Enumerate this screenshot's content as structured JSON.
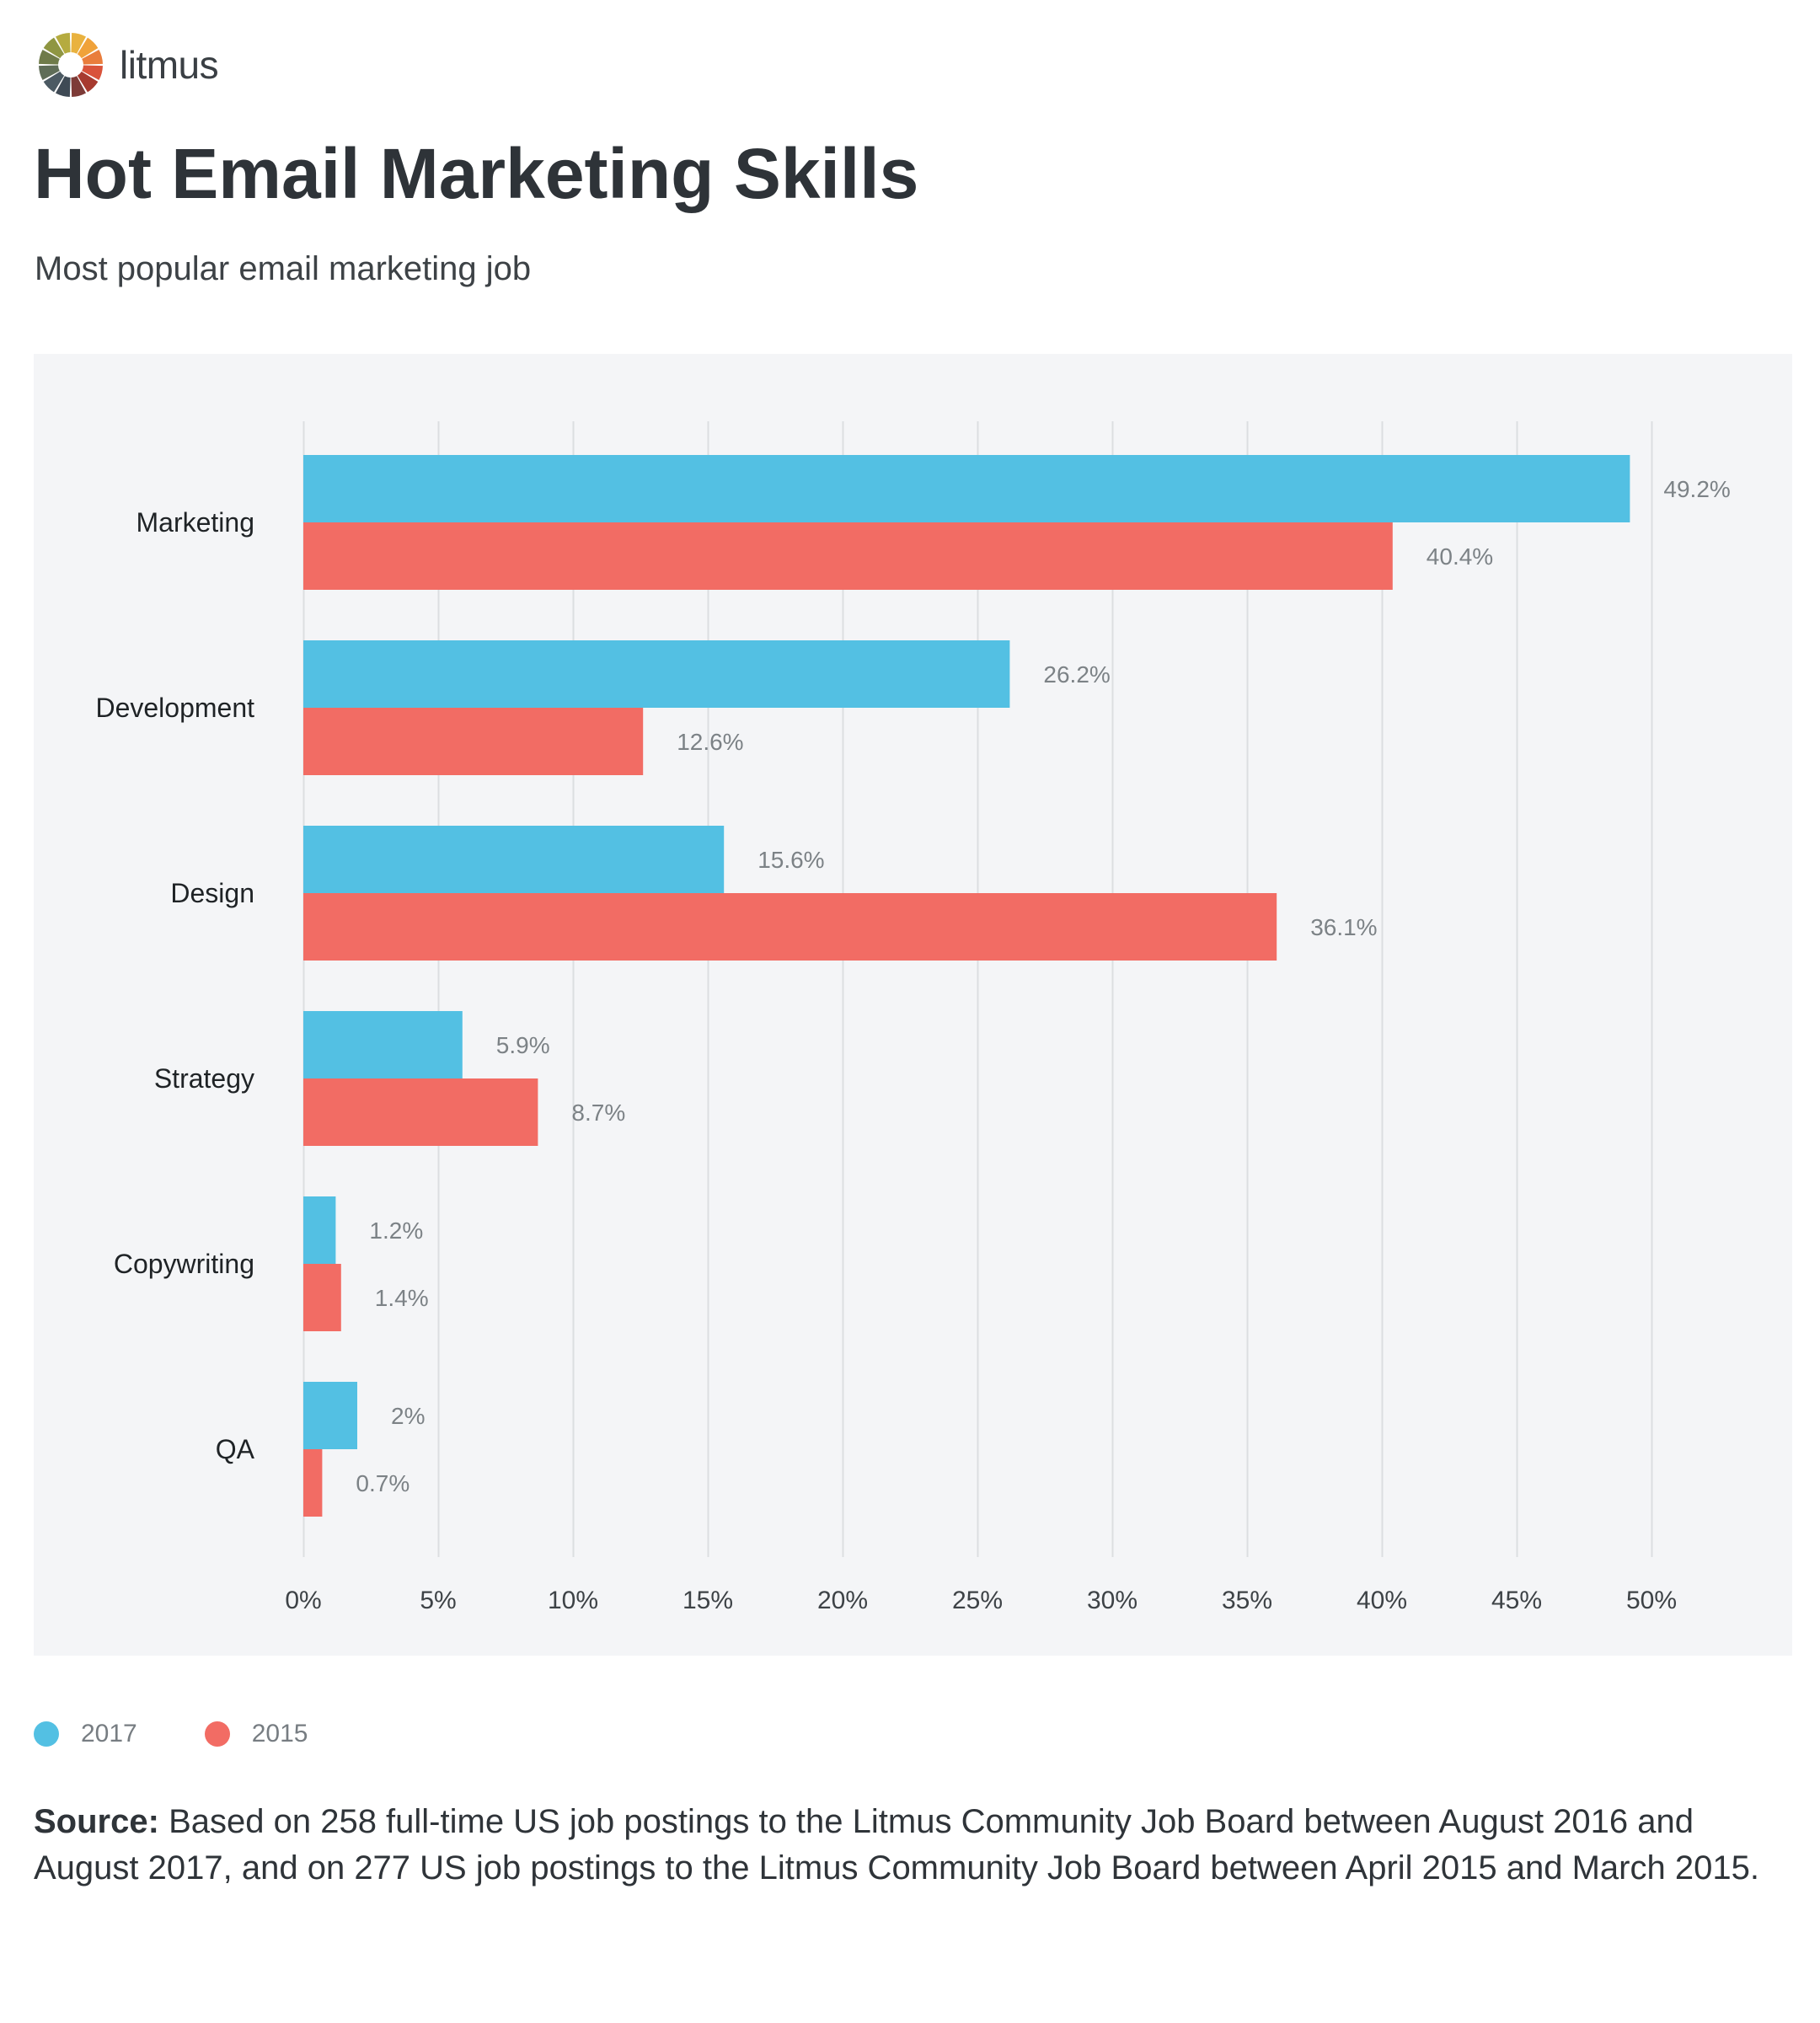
{
  "brand": {
    "name": "litmus"
  },
  "colors": {
    "series_2017": "#53c0e3",
    "series_2015": "#f26c64",
    "panel_background": "#f4f5f7",
    "grid": "#dcdee1",
    "value_label": "#7c8286",
    "category_label": "#1f2326"
  },
  "title": "Hot Email Marketing Skills",
  "subtitle": "Most popular email marketing job",
  "legend": [
    {
      "label": "2017",
      "color": "#53c0e3"
    },
    {
      "label": "2015",
      "color": "#f26c64"
    }
  ],
  "source": {
    "label": "Source:",
    "text": "Based on 258 full-time US job postings to the Litmus Community Job Board between August 2016 and August 2017, and on 277 US job postings to the Litmus Community Job Board between April 2015 and March 2015."
  },
  "chart_data": {
    "type": "bar",
    "orientation": "horizontal",
    "title": "Hot Email Marketing Skills",
    "subtitle": "Most popular email marketing job",
    "xlabel": "",
    "ylabel": "",
    "categories": [
      "Marketing",
      "Development",
      "Design",
      "Strategy",
      "Copywriting",
      "QA"
    ],
    "series": [
      {
        "name": "2017",
        "color": "#53c0e3",
        "values": [
          49.2,
          26.2,
          15.6,
          5.9,
          1.2,
          2
        ],
        "labels": [
          "49.2%",
          "26.2%",
          "15.6%",
          "5.9%",
          "1.2%",
          "2%"
        ]
      },
      {
        "name": "2015",
        "color": "#f26c64",
        "values": [
          40.4,
          12.6,
          36.1,
          8.7,
          1.4,
          0.7
        ],
        "labels": [
          "40.4%",
          "12.6%",
          "36.1%",
          "8.7%",
          "1.4%",
          "0.7%"
        ]
      }
    ],
    "xlim": [
      0,
      50
    ],
    "xticks": [
      0,
      5,
      10,
      15,
      20,
      25,
      30,
      35,
      40,
      45,
      50
    ],
    "xtick_labels": [
      "0%",
      "5%",
      "10%",
      "15%",
      "20%",
      "25%",
      "30%",
      "35%",
      "40%",
      "45%",
      "50%"
    ],
    "grid": "vertical",
    "legend_position": "bottom-left"
  }
}
